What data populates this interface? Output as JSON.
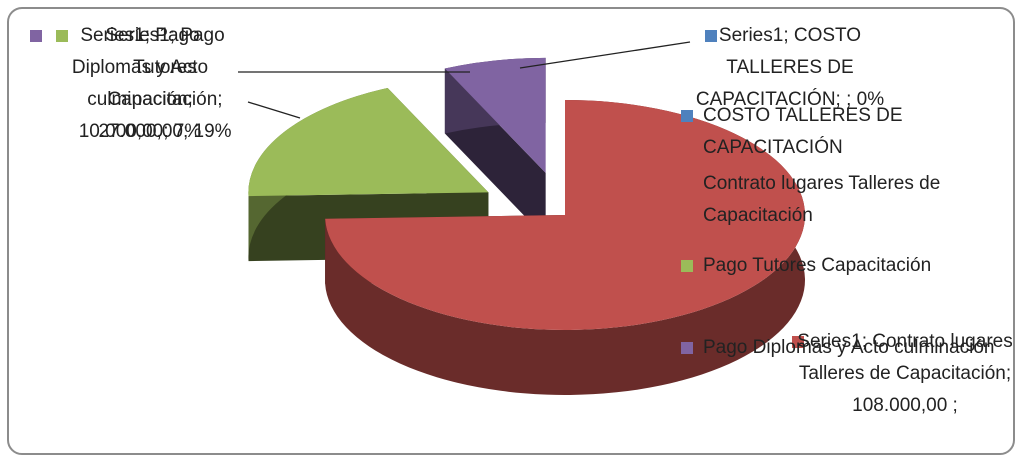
{
  "chart_data": {
    "type": "pie",
    "categories": [
      "COSTO TALLERES DE CAPACITACIÓN",
      "Contrato lugares Talleres de Capacitación",
      "Pago Tutores Capacitación",
      "Pago Diplomas y Acto culminación"
    ],
    "series": [
      {
        "name": "Series1",
        "values": [
          0,
          108000,
          27000,
          10000
        ],
        "value_labels": [
          "Series1; COSTO TALLERES DE CAPACITACIÓN; ; 0%",
          "Series1; Contrato lugares Talleres de Capacitación; 108.000,00 ;",
          "Series1; Pago Tutores Capacitación; 27.000,00; 19%",
          "Series1; Pago Diplomas y Acto culminación; 10.000,00; 7%"
        ]
      }
    ],
    "colors": [
      "#4f81bd",
      "#c0504d",
      "#9bbb59",
      "#8064a2"
    ],
    "legend": "right"
  }
}
